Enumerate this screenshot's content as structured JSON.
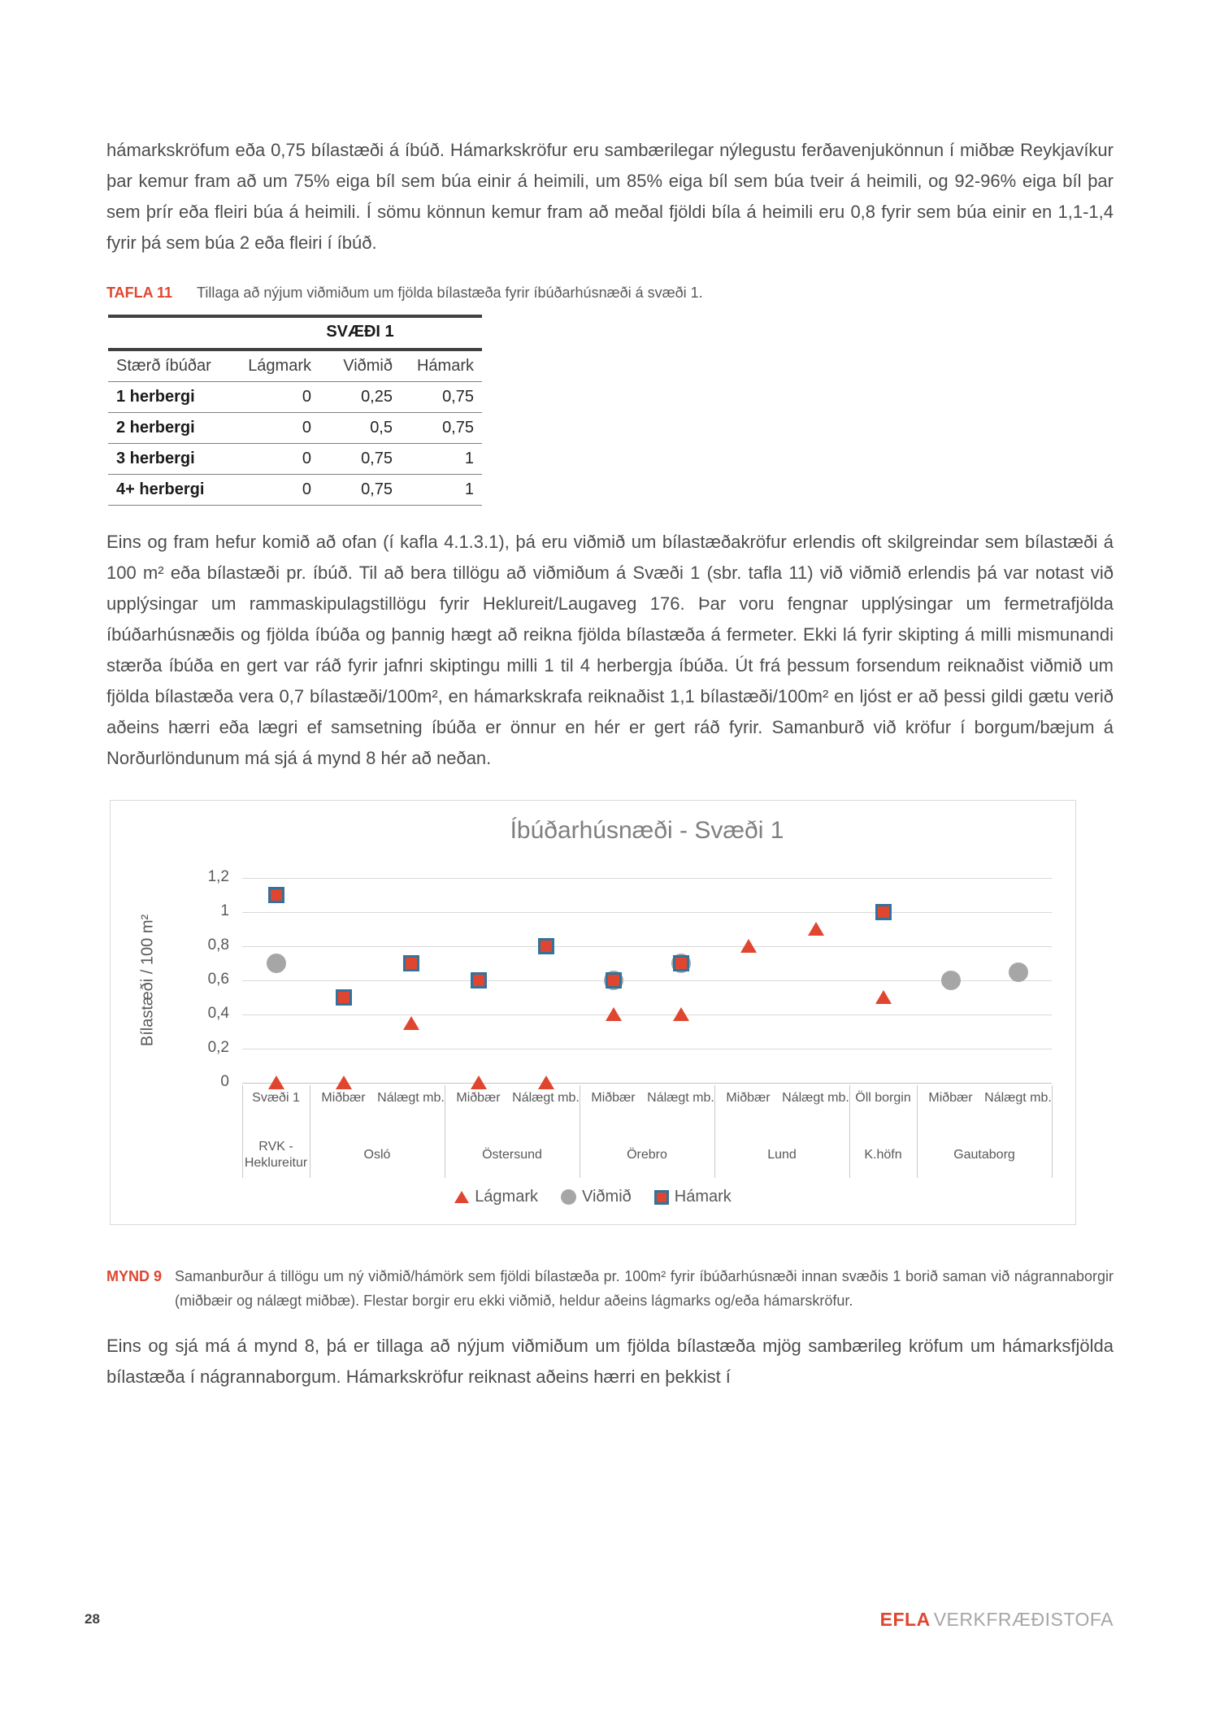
{
  "colors": {
    "accent_red": "#e0462f",
    "marker_gray": "#a6a6a6",
    "square_border": "#31739c",
    "grid": "#d9d9d9",
    "body_text": "#4d4d4d"
  },
  "paragraphs": {
    "p1": "hámarkskröfum eða 0,75 bílastæði á íbúð. Hámarkskröfur eru sambærilegar nýlegustu ferðavenjukönnun í miðbæ Reykjavíkur þar kemur fram að um 75% eiga bíl sem búa einir á heimili, um 85% eiga bíl sem búa tveir á heimili, og 92-96% eiga bíl þar sem þrír eða fleiri búa á heimili. Í sömu könnun kemur fram að meðal fjöldi bíla á heimili eru 0,8 fyrir sem búa einir en 1,1-1,4 fyrir þá sem búa 2 eða fleiri í íbúð.",
    "p2": "Eins og fram hefur komið að ofan (í kafla 4.1.3.1), þá eru viðmið um bílastæðakröfur erlendis oft skilgreindar sem bílastæði á 100 m² eða bílastæði pr. íbúð. Til að bera tillögu að viðmiðum á Svæði 1 (sbr. tafla 11) við viðmið erlendis þá var notast við upplýsingar um rammaskipulagstillögu fyrir Heklureit/Laugaveg 176.  Þar voru fengnar upplýsingar um fermetrafjölda íbúðarhúsnæðis og fjölda íbúða og þannig hægt að reikna fjölda bílastæða á fermeter. Ekki lá fyrir skipting á milli mismunandi stærða íbúða en gert var ráð fyrir jafnri skiptingu milli 1 til 4 herbergja íbúða. Út frá þessum forsendum reiknaðist viðmið um fjölda bílastæða vera 0,7 bílastæði/100m², en hámarkskrafa reiknaðist 1,1 bílastæði/100m² en ljóst er að þessi gildi gætu verið aðeins hærri eða lægri ef samsetning íbúða er önnur en hér er gert ráð fyrir. Samanburð við kröfur í borgum/bæjum á Norðurlöndunum má sjá á mynd 8 hér að neðan.",
    "p3": "Eins og sjá má á mynd 8, þá er tillaga að nýjum viðmiðum um fjölda bílastæða mjög sambærileg kröfum um hámarksfjölda bílastæða í nágrannaborgum. Hámarkskröfur reiknast aðeins hærri en þekkist í"
  },
  "table": {
    "label": "TAFLA 11",
    "caption": "Tillaga að nýjum viðmiðum um fjölda bílastæða fyrir íbúðarhúsnæði á svæði 1.",
    "group_header": "SVÆÐI 1",
    "columns": [
      "Stærð íbúðar",
      "Lágmark",
      "Viðmið",
      "Hámark"
    ],
    "rows": [
      [
        "1 herbergi",
        "0",
        "0,25",
        "0,75"
      ],
      [
        "2 herbergi",
        "0",
        "0,5",
        "0,75"
      ],
      [
        "3 herbergi",
        "0",
        "0,75",
        "1"
      ],
      [
        "4+ herbergi",
        "0",
        "0,75",
        "1"
      ]
    ]
  },
  "figure": {
    "label": "MYND 9",
    "caption": "Samanburður á tillögu um ný viðmið/hámörk sem fjöldi bílastæða pr. 100m² fyrir íbúðarhúsnæði innan svæðis 1 borið saman við nágrannaborgir (miðbæir og nálægt miðbæ). Flestar borgir eru ekki viðmið, heldur aðeins lágmarks og/eða hámarskröfur."
  },
  "chart_data": {
    "type": "scatter",
    "title": "Íbúðarhúsnæði - Svæði 1",
    "xlabel": "",
    "ylabel": "Bílastæði / 100 m²",
    "ylim": [
      0,
      1.2
    ],
    "grid": true,
    "legend_position": "bottom",
    "yticks": [
      {
        "label": "1,2",
        "v": 1.2
      },
      {
        "label": "1",
        "v": 1.0
      },
      {
        "label": "0,8",
        "v": 0.8
      },
      {
        "label": "0,6",
        "v": 0.6
      },
      {
        "label": "0,4",
        "v": 0.4
      },
      {
        "label": "0,2",
        "v": 0.2
      },
      {
        "label": "0",
        "v": 0
      }
    ],
    "categories": [
      "Svæði 1",
      "Miðbær",
      "Nálægt mb.",
      "Miðbær",
      "Nálægt mb.",
      "Miðbær",
      "Nálægt mb.",
      "Miðbær",
      "Nálægt mb.",
      "Öll borgin",
      "Miðbær",
      "Nálægt mb."
    ],
    "groups": [
      {
        "label": "RVK - Heklureitur",
        "cols": 1
      },
      {
        "label": "Osló",
        "cols": 2
      },
      {
        "label": "Östersund",
        "cols": 2
      },
      {
        "label": "Örebro",
        "cols": 2
      },
      {
        "label": "Lund",
        "cols": 2
      },
      {
        "label": "K.höfn",
        "cols": 1
      },
      {
        "label": "Gautaborg",
        "cols": 2
      }
    ],
    "series": [
      {
        "name": "Lágmark",
        "marker": "triangle",
        "color": "#e0462f",
        "values": [
          0,
          0,
          0.35,
          0,
          0,
          0.4,
          0.4,
          0.8,
          0.9,
          0.5,
          null,
          null
        ]
      },
      {
        "name": "Viðmið",
        "marker": "circle",
        "color": "#a6a6a6",
        "values": [
          0.7,
          null,
          null,
          null,
          null,
          0.6,
          0.7,
          null,
          null,
          null,
          0.6,
          0.65
        ]
      },
      {
        "name": "Hámark",
        "marker": "square",
        "color": "#e0462f",
        "border_color": "#31739c",
        "values": [
          1.1,
          0.5,
          0.7,
          0.6,
          0.8,
          0.6,
          0.7,
          null,
          null,
          1.0,
          null,
          null
        ]
      }
    ]
  },
  "footer": {
    "page_number": "28",
    "brand": "EFLA",
    "brand_suffix": "VERKFRÆÐISTOFA"
  }
}
